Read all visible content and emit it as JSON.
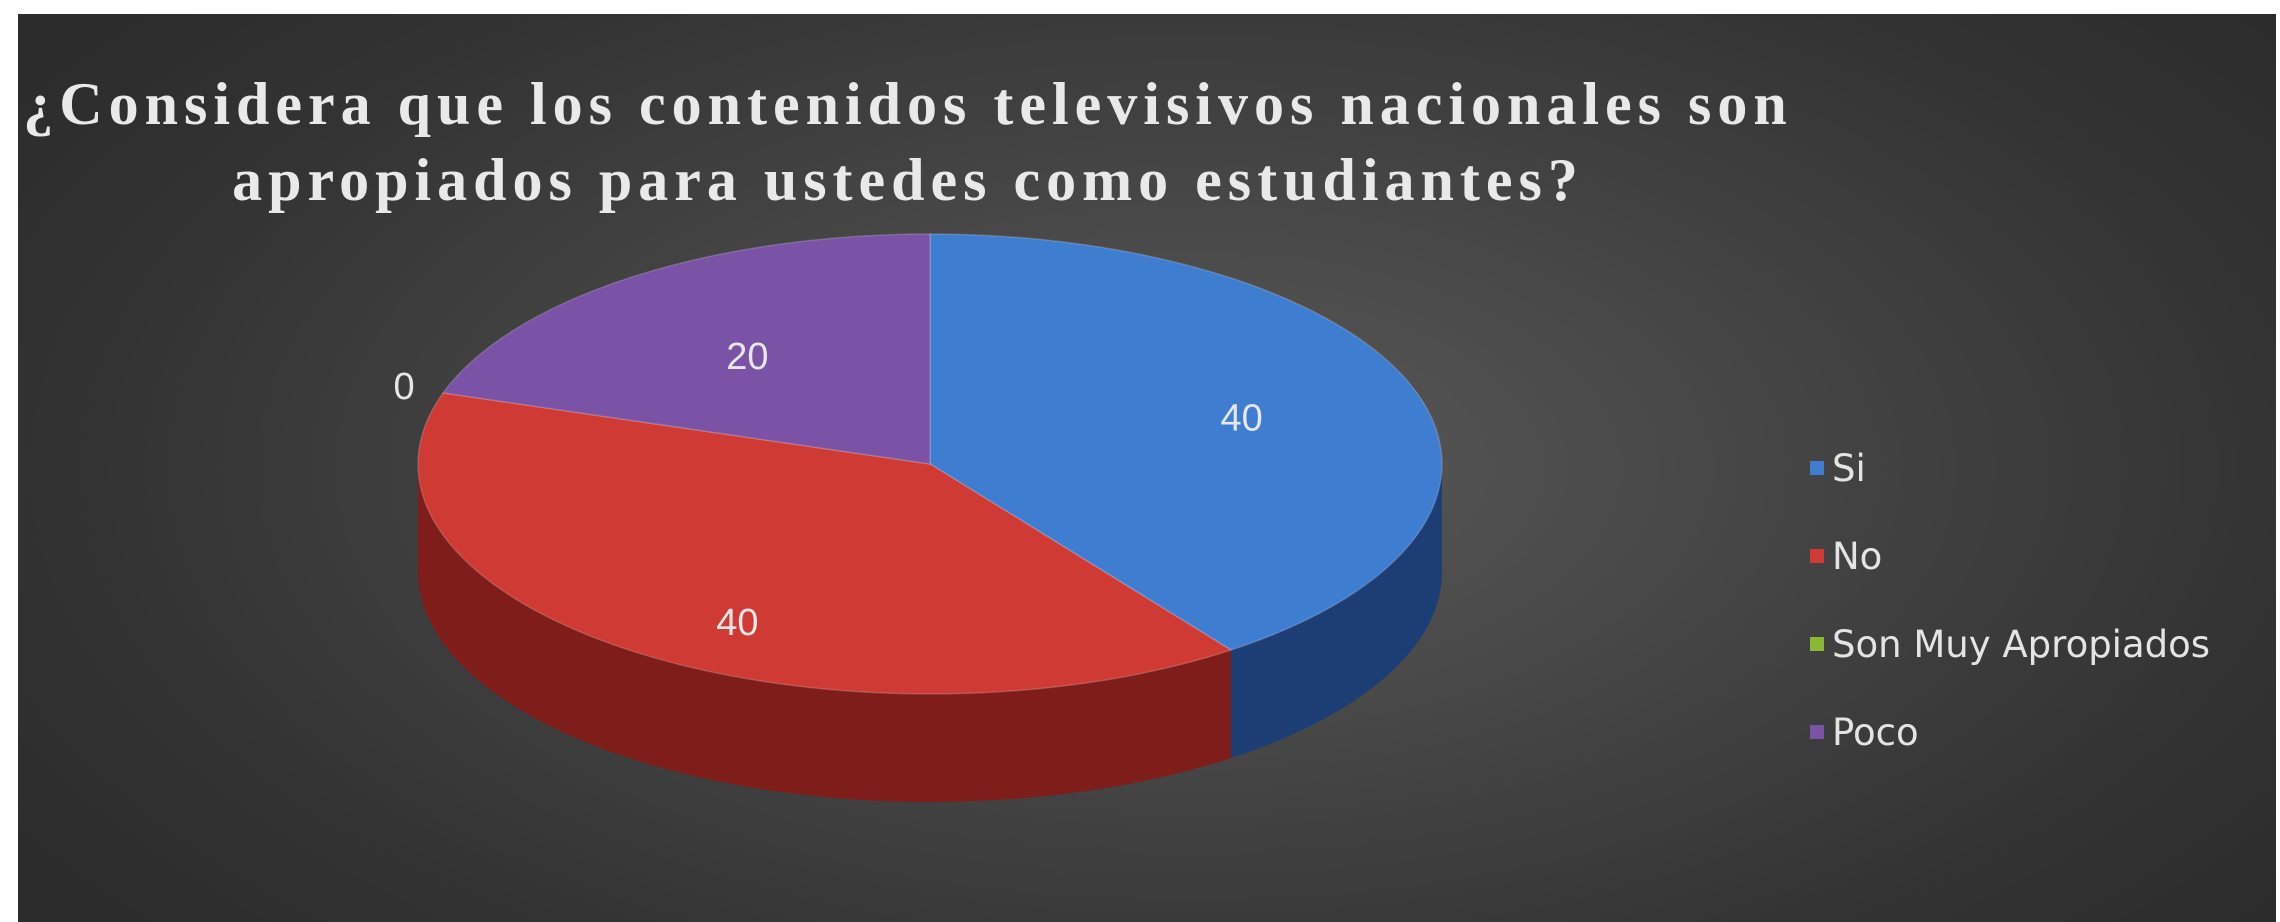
{
  "chart_data": {
    "type": "pie",
    "title_lines": [
      "¿Considera que los contenidos televisivos nacionales son",
      "apropiados para ustedes como estudiantes?"
    ],
    "categories": [
      "Si",
      "No",
      "Son Muy Apropiados",
      "Poco"
    ],
    "values": [
      40,
      40,
      0,
      20
    ],
    "colors": [
      "#3f7dd0",
      "#cf3a34",
      "#8ab832",
      "#7a52a6"
    ],
    "side_colors": [
      "#1d3d75",
      "#7e1d1a",
      "#4e7218",
      "#472e66"
    ],
    "legend_position": "right",
    "style": "3d"
  }
}
